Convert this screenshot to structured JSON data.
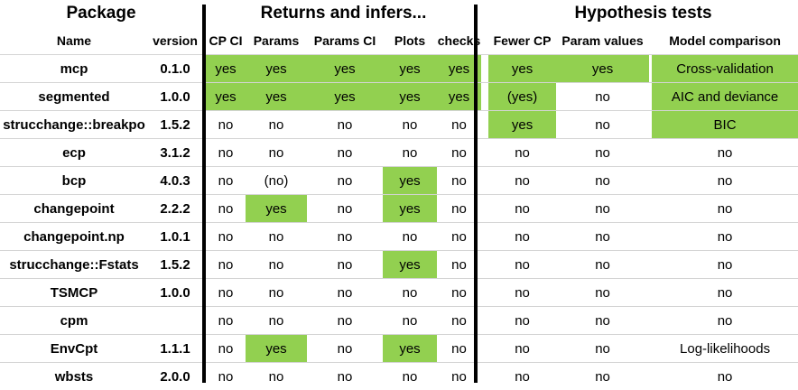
{
  "group_headers": [
    "Package",
    "Returns and infers...",
    "Hypothesis tests"
  ],
  "sub_headers": [
    "Name",
    "version",
    "CP CI",
    "Params",
    "Params CI",
    "Plots",
    "checks",
    "Fewer CP",
    "Param values",
    "Model comparison"
  ],
  "highlight_color": "#92d050",
  "rows": [
    {
      "name": "mcp",
      "version": "0.1.0",
      "cells": [
        {
          "v": "yes",
          "hl": true
        },
        {
          "v": "yes",
          "hl": true
        },
        {
          "v": "yes",
          "hl": true
        },
        {
          "v": "yes",
          "hl": true
        },
        {
          "v": "yes",
          "hl": true
        },
        {
          "v": "yes",
          "hl": true
        },
        {
          "v": "yes",
          "hl": true
        },
        {
          "v": "Cross-validation",
          "hl": true
        }
      ]
    },
    {
      "name": "segmented",
      "version": "1.0.0",
      "cells": [
        {
          "v": "yes",
          "hl": true
        },
        {
          "v": "yes",
          "hl": true
        },
        {
          "v": "yes",
          "hl": true
        },
        {
          "v": "yes",
          "hl": true
        },
        {
          "v": "yes",
          "hl": true
        },
        {
          "v": "(yes)",
          "hl": true
        },
        {
          "v": "no",
          "hl": false
        },
        {
          "v": "AIC and deviance",
          "hl": true
        }
      ]
    },
    {
      "name": "strucchange::breakpo",
      "version": "1.5.2",
      "cells": [
        {
          "v": "no",
          "hl": false
        },
        {
          "v": "no",
          "hl": false
        },
        {
          "v": "no",
          "hl": false
        },
        {
          "v": "no",
          "hl": false
        },
        {
          "v": "no",
          "hl": false
        },
        {
          "v": "yes",
          "hl": true
        },
        {
          "v": "no",
          "hl": false
        },
        {
          "v": "BIC",
          "hl": true
        }
      ]
    },
    {
      "name": "ecp",
      "version": "3.1.2",
      "cells": [
        {
          "v": "no",
          "hl": false
        },
        {
          "v": "no",
          "hl": false
        },
        {
          "v": "no",
          "hl": false
        },
        {
          "v": "no",
          "hl": false
        },
        {
          "v": "no",
          "hl": false
        },
        {
          "v": "no",
          "hl": false
        },
        {
          "v": "no",
          "hl": false
        },
        {
          "v": "no",
          "hl": false
        }
      ]
    },
    {
      "name": "bcp",
      "version": "4.0.3",
      "cells": [
        {
          "v": "no",
          "hl": false
        },
        {
          "v": "(no)",
          "hl": false
        },
        {
          "v": "no",
          "hl": false
        },
        {
          "v": "yes",
          "hl": true
        },
        {
          "v": "no",
          "hl": false
        },
        {
          "v": "no",
          "hl": false
        },
        {
          "v": "no",
          "hl": false
        },
        {
          "v": "no",
          "hl": false
        }
      ]
    },
    {
      "name": "changepoint",
      "version": "2.2.2",
      "cells": [
        {
          "v": "no",
          "hl": false
        },
        {
          "v": "yes",
          "hl": true
        },
        {
          "v": "no",
          "hl": false
        },
        {
          "v": "yes",
          "hl": true
        },
        {
          "v": "no",
          "hl": false
        },
        {
          "v": "no",
          "hl": false
        },
        {
          "v": "no",
          "hl": false
        },
        {
          "v": "no",
          "hl": false
        }
      ]
    },
    {
      "name": "changepoint.np",
      "version": "1.0.1",
      "cells": [
        {
          "v": "no",
          "hl": false
        },
        {
          "v": "no",
          "hl": false
        },
        {
          "v": "no",
          "hl": false
        },
        {
          "v": "no",
          "hl": false
        },
        {
          "v": "no",
          "hl": false
        },
        {
          "v": "no",
          "hl": false
        },
        {
          "v": "no",
          "hl": false
        },
        {
          "v": "no",
          "hl": false
        }
      ]
    },
    {
      "name": "strucchange::Fstats",
      "version": "1.5.2",
      "cells": [
        {
          "v": "no",
          "hl": false
        },
        {
          "v": "no",
          "hl": false
        },
        {
          "v": "no",
          "hl": false
        },
        {
          "v": "yes",
          "hl": true
        },
        {
          "v": "no",
          "hl": false
        },
        {
          "v": "no",
          "hl": false
        },
        {
          "v": "no",
          "hl": false
        },
        {
          "v": "no",
          "hl": false
        }
      ]
    },
    {
      "name": "TSMCP",
      "version": "1.0.0",
      "cells": [
        {
          "v": "no",
          "hl": false
        },
        {
          "v": "no",
          "hl": false
        },
        {
          "v": "no",
          "hl": false
        },
        {
          "v": "no",
          "hl": false
        },
        {
          "v": "no",
          "hl": false
        },
        {
          "v": "no",
          "hl": false
        },
        {
          "v": "no",
          "hl": false
        },
        {
          "v": "no",
          "hl": false
        }
      ]
    },
    {
      "name": "cpm",
      "version": "",
      "cells": [
        {
          "v": "no",
          "hl": false
        },
        {
          "v": "no",
          "hl": false
        },
        {
          "v": "no",
          "hl": false
        },
        {
          "v": "no",
          "hl": false
        },
        {
          "v": "no",
          "hl": false
        },
        {
          "v": "no",
          "hl": false
        },
        {
          "v": "no",
          "hl": false
        },
        {
          "v": "no",
          "hl": false
        }
      ]
    },
    {
      "name": "EnvCpt",
      "version": "1.1.1",
      "cells": [
        {
          "v": "no",
          "hl": false
        },
        {
          "v": "yes",
          "hl": true
        },
        {
          "v": "no",
          "hl": false
        },
        {
          "v": "yes",
          "hl": true
        },
        {
          "v": "no",
          "hl": false
        },
        {
          "v": "no",
          "hl": false
        },
        {
          "v": "no",
          "hl": false
        },
        {
          "v": "Log-likelihoods",
          "hl": false
        }
      ]
    },
    {
      "name": "wbsts",
      "version": "2.0.0",
      "cells": [
        {
          "v": "no",
          "hl": false
        },
        {
          "v": "no",
          "hl": false
        },
        {
          "v": "no",
          "hl": false
        },
        {
          "v": "no",
          "hl": false
        },
        {
          "v": "no",
          "hl": false
        },
        {
          "v": "no",
          "hl": false
        },
        {
          "v": "no",
          "hl": false
        },
        {
          "v": "no",
          "hl": false
        }
      ]
    }
  ]
}
